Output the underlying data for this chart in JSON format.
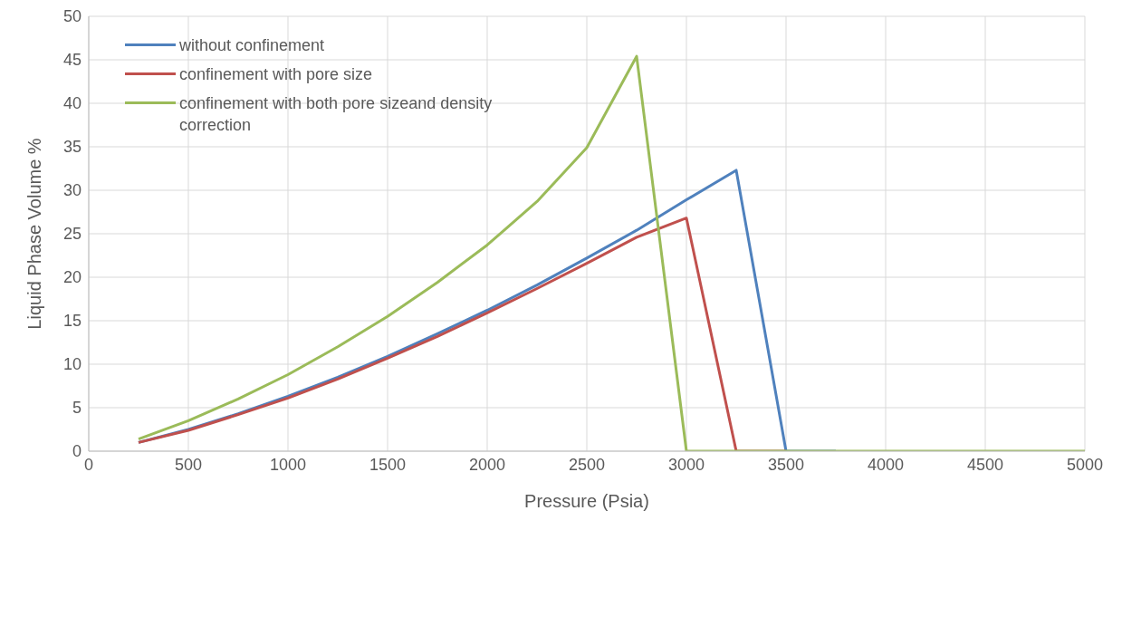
{
  "chart_data": {
    "type": "line",
    "xlabel": "Pressure (Psia)",
    "ylabel": "Liquid Phase Volume %",
    "x": [
      250,
      500,
      750,
      1000,
      1250,
      1500,
      1750,
      2000,
      2250,
      2500,
      2750,
      3000,
      3250,
      3500,
      3750,
      4000,
      4250,
      4500,
      4750,
      5000
    ],
    "series": [
      {
        "name": "without confinement",
        "color": "#4f81bd",
        "values": [
          1.0,
          2.5,
          4.3,
          6.3,
          8.5,
          10.9,
          13.5,
          16.2,
          19.1,
          22.2,
          25.4,
          28.9,
          32.3,
          0,
          0,
          null,
          null,
          null,
          null,
          null
        ]
      },
      {
        "name": "confinement with pore size",
        "color": "#c0504d",
        "values": [
          1.0,
          2.4,
          4.2,
          6.1,
          8.3,
          10.7,
          13.2,
          15.9,
          18.7,
          21.6,
          24.6,
          26.8,
          0,
          0,
          null,
          null,
          null,
          null,
          null,
          null
        ]
      },
      {
        "name": "confinement with both pore sizeand density correction",
        "color": "#9bbb59",
        "values": [
          1.4,
          3.5,
          6.0,
          8.8,
          12.0,
          15.5,
          19.4,
          23.7,
          28.7,
          34.9,
          45.4,
          0,
          0,
          0,
          0,
          0,
          0,
          0,
          0,
          0
        ]
      }
    ],
    "xlim": [
      0,
      5000
    ],
    "xticks": [
      0,
      500,
      1000,
      1500,
      2000,
      2500,
      3000,
      3500,
      4000,
      4500,
      5000
    ],
    "ylim": [
      0,
      50
    ],
    "yticks": [
      0,
      5,
      10,
      15,
      20,
      25,
      30,
      35,
      40,
      45,
      50
    ],
    "grid": true,
    "legend": "top left",
    "marker": "none",
    "line_style": "solid"
  }
}
